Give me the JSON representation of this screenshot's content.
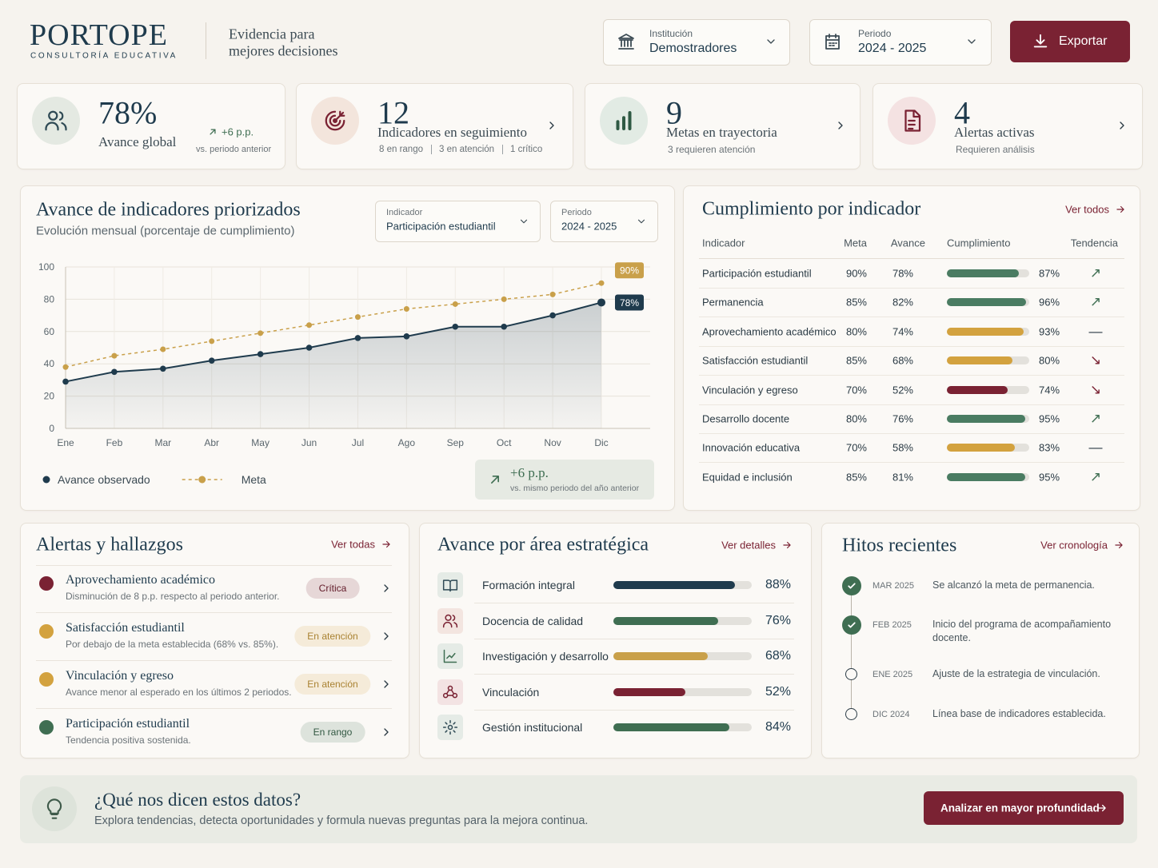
{
  "header": {
    "brand": "PORTOPE",
    "tagline": "CONSULTORÍA EDUCATIVA",
    "slogan": [
      "Evidencia para",
      "mejores decisiones"
    ],
    "filters": [
      {
        "label": "Institución",
        "value": "Demostradores"
      },
      {
        "label": "Periodo",
        "value": "2024 - 2025"
      }
    ],
    "export": "Exportar"
  },
  "kpis": [
    {
      "value": "78%",
      "label": "Avance global",
      "delta": "+6 p.p.",
      "note": "vs. periodo anterior"
    },
    {
      "value": "12",
      "label": "Indicadores en seguimiento",
      "details": [
        "8 en rango",
        "3 en atención",
        "1 crítico"
      ]
    },
    {
      "value": "9",
      "label": "Metas en trayectoria",
      "note": "3 requieren atención"
    },
    {
      "value": "4",
      "label": "Alertas activas",
      "note": "Requieren análisis"
    }
  ],
  "chart_data": {
    "type": "line",
    "title": "Avance de indicadores priorizados",
    "subtitle": "Evolución mensual (porcentaje de cumplimiento)",
    "filters": [
      {
        "label": "Indicador",
        "value": "Participación estudiantil"
      },
      {
        "label": "Periodo",
        "value": "2024 - 2025"
      }
    ],
    "categories": [
      "Ene",
      "Feb",
      "Mar",
      "Abr",
      "May",
      "Jun",
      "Jul",
      "Ago",
      "Sep",
      "Oct",
      "Nov",
      "Dic"
    ],
    "series": [
      {
        "name": "Avance observado",
        "color": "#1f3b4d",
        "values": [
          29,
          35,
          37,
          42,
          46,
          50,
          56,
          57,
          63,
          63,
          70,
          78
        ],
        "value_labels": [
          null,
          null,
          null,
          null,
          null,
          null,
          null,
          null,
          null,
          null,
          null,
          "78%"
        ]
      },
      {
        "name": "Meta",
        "color": "#c9a04a",
        "dashed": true,
        "values": [
          38,
          45,
          49,
          54,
          59,
          64,
          69,
          74,
          77,
          80,
          83,
          90
        ],
        "value_labels": [
          null,
          null,
          null,
          null,
          null,
          null,
          null,
          null,
          null,
          null,
          null,
          "90%"
        ]
      }
    ],
    "ylim": [
      0,
      100
    ],
    "yticks": [
      0,
      20,
      40,
      60,
      80,
      100
    ],
    "grid": true,
    "callout": {
      "delta": "+6 p.p.",
      "note": "vs. mismo periodo del año anterior"
    }
  },
  "compliance": {
    "title": "Cumplimiento por indicador",
    "link": "Ver todos",
    "columns": [
      "Indicador",
      "Meta",
      "Avance",
      "Cumplimiento",
      "Tendencia"
    ],
    "rows": [
      {
        "name": "Participación estudiantil",
        "meta": "90%",
        "avance": "78%",
        "cumplimiento": {
          "value": 87,
          "label": "87%"
        },
        "color": "#4a7c62",
        "trend": "↗"
      },
      {
        "name": "Permanencia",
        "meta": "85%",
        "avance": "82%",
        "cumplimiento": {
          "value": 96,
          "label": "96%"
        },
        "color": "#4a7c62",
        "trend": "↗"
      },
      {
        "name": "Aprovechamiento académico",
        "meta": "80%",
        "avance": "74%",
        "cumplimiento": {
          "value": 93,
          "label": "93%"
        },
        "color": "#d3a23f",
        "trend": "—"
      },
      {
        "name": "Satisfacción estudiantil",
        "meta": "85%",
        "avance": "68%",
        "cumplimiento": {
          "value": 80,
          "label": "80%"
        },
        "color": "#d3a23f",
        "trend": "↘"
      },
      {
        "name": "Vinculación y egreso",
        "meta": "70%",
        "avance": "52%",
        "cumplimiento": {
          "value": 74,
          "label": "74%"
        },
        "color": "#7a2233",
        "trend": "↘"
      },
      {
        "name": "Desarrollo docente",
        "meta": "80%",
        "avance": "76%",
        "cumplimiento": {
          "value": 95,
          "label": "95%"
        },
        "color": "#4a7c62",
        "trend": "↗"
      },
      {
        "name": "Innovación educativa",
        "meta": "70%",
        "avance": "58%",
        "cumplimiento": {
          "value": 83,
          "label": "83%"
        },
        "color": "#d3a23f",
        "trend": "—"
      },
      {
        "name": "Equidad e inclusión",
        "meta": "85%",
        "avance": "81%",
        "cumplimiento": {
          "value": 95,
          "label": "95%"
        },
        "color": "#4a7c62",
        "trend": "↗"
      }
    ]
  },
  "alerts": {
    "title": "Alertas y hallazgos",
    "link": "Ver todas",
    "items": [
      {
        "title": "Aprovechamiento académico",
        "description": "Disminución de 8 p.p. respecto al periodo anterior.",
        "status": "Crítica",
        "color": "#7a2233"
      },
      {
        "title": "Satisfacción estudiantil",
        "description": "Por debajo de la meta establecida (68% vs. 85%).",
        "status": "En atención",
        "color": "#d3a23f"
      },
      {
        "title": "Vinculación y egreso",
        "description": "Avance menor al esperado en los últimos 2 periodos.",
        "status": "En atención",
        "color": "#d3a23f"
      },
      {
        "title": "Participación estudiantil",
        "description": "Tendencia positiva sostenida.",
        "status": "En rango",
        "color": "#3f6e52"
      }
    ]
  },
  "areas": {
    "title": "Avance por área estratégica",
    "link": "Ver detalles",
    "items": [
      {
        "name": "Formación integral",
        "value": {
          "value": 88,
          "label": "88%"
        },
        "color": "#1f3b4d"
      },
      {
        "name": "Docencia de calidad",
        "value": {
          "value": 76,
          "label": "76%"
        },
        "color": "#3f6e52"
      },
      {
        "name": "Investigación y desarrollo",
        "value": {
          "value": 68,
          "label": "68%"
        },
        "color": "#c9a04a"
      },
      {
        "name": "Vinculación",
        "value": {
          "value": 52,
          "label": "52%"
        },
        "color": "#7a2233"
      },
      {
        "name": "Gestión institucional",
        "value": {
          "value": 84,
          "label": "84%"
        },
        "color": "#3f6e52"
      }
    ]
  },
  "milestones": {
    "title": "Hitos recientes",
    "link": "Ver cronología",
    "items": [
      {
        "date": "MAR 2025",
        "text": "Se alcanzó la meta de permanencia.",
        "done": true
      },
      {
        "date": "FEB 2025",
        "text": "Inicio del programa de acompañamiento docente.",
        "done": true
      },
      {
        "date": "ENE 2025",
        "text": "Ajuste de la estrategia de vinculación.",
        "done": false
      },
      {
        "date": "DIC 2024",
        "text": "Línea base de indicadores establecida.",
        "done": false
      }
    ]
  },
  "insight": {
    "title": "¿Qué nos dicen estos datos?",
    "text": "Explora tendencias, detecta oportunidades y formula nuevas preguntas para la mejora continua.",
    "button": "Analizar en mayor profundidad"
  }
}
